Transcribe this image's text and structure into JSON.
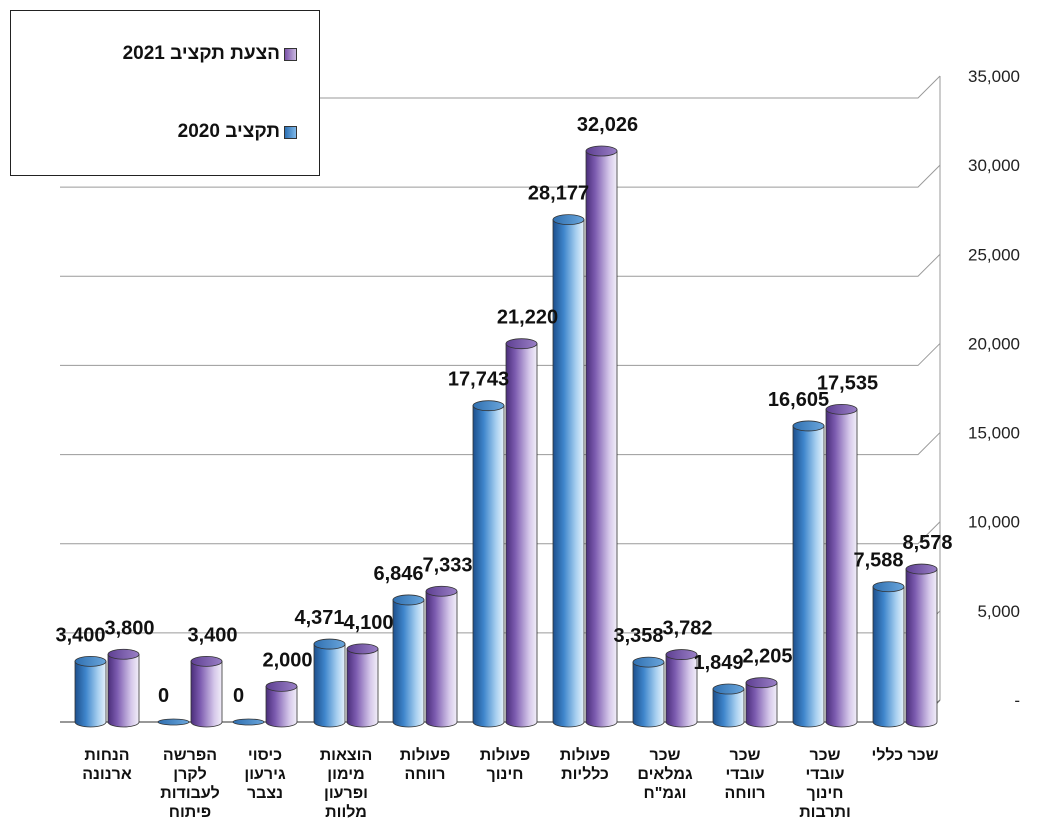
{
  "legend": {
    "series_2021": "הצעת תקציב 2021",
    "series_2020": "תקציב 2020"
  },
  "colors": {
    "series_2020": "#3a7fc4",
    "series_2021": "#8060b0"
  },
  "chart_data": {
    "type": "bar",
    "title": "",
    "xlabel": "",
    "ylabel": "",
    "ylim": [
      0,
      35000
    ],
    "y_ticks": [
      "-",
      "5,000",
      "10,000",
      "15,000",
      "20,000",
      "25,000",
      "30,000",
      "35,000"
    ],
    "legend_position": "top-left",
    "grid": true,
    "categories": [
      [
        "הנחות",
        "ארנונה"
      ],
      [
        "הפרשה",
        "לקרן",
        "לעבודות",
        "פיתוח"
      ],
      [
        "כיסוי",
        "גירעון",
        "נצבר"
      ],
      [
        "הוצאות",
        "מימון",
        "ופרעון",
        "מלוות"
      ],
      [
        "פעולות",
        "רווחה"
      ],
      [
        "פעולות",
        "חינוך"
      ],
      [
        "פעולות",
        "כלליות"
      ],
      [
        "שכר",
        "גמלאים",
        "וגמ\"ח"
      ],
      [
        "שכר",
        "עובדי",
        "רווחה"
      ],
      [
        "שכר",
        "עובדי",
        "חינוך",
        "ותרבות"
      ],
      [
        "שכר כללי"
      ]
    ],
    "series": [
      {
        "name": "תקציב 2020",
        "values": [
          3400,
          0,
          0,
          4371,
          6846,
          17743,
          28177,
          3358,
          1849,
          16605,
          7588
        ],
        "labels": [
          "3,400",
          "0",
          "0",
          "4,371",
          "6,846",
          "17,743",
          "28,177",
          "3,358",
          "1,849",
          "16,605",
          "7,588"
        ]
      },
      {
        "name": "הצעת תקציב 2021",
        "values": [
          3800,
          3400,
          2000,
          4100,
          7333,
          21220,
          32026,
          3782,
          2205,
          17535,
          8578
        ],
        "labels": [
          "3,800",
          "3,400",
          "2,000",
          "4,100",
          "7,333",
          "21,220",
          "32,026",
          "3,782",
          "2,205",
          "17,535",
          "8,578"
        ]
      }
    ]
  }
}
